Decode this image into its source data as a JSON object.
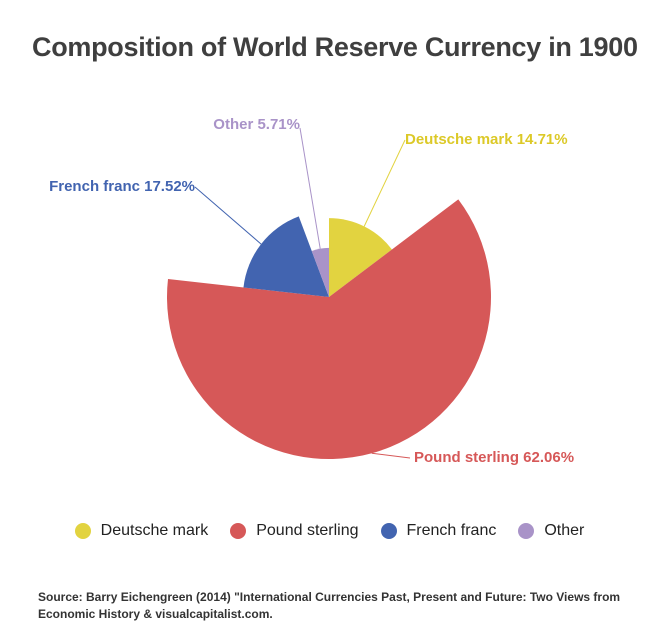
{
  "chart_data": {
    "type": "pie",
    "title": "Composition of World Reserve Currency in 1900",
    "slices": [
      {
        "name": "Deutsche mark",
        "value": 14.71,
        "label": "Deutsche mark 14.71%",
        "color": "#e2d340"
      },
      {
        "name": "Pound sterling",
        "value": 62.06,
        "label": "Pound sterling 62.06%",
        "color": "#d65858"
      },
      {
        "name": "French franc",
        "value": 17.52,
        "label": "French franc 17.52%",
        "color": "#4264b0"
      },
      {
        "name": "Other",
        "value": 5.71,
        "label": "Other 5.71%",
        "color": "#a993c8"
      }
    ],
    "legend_position": "bottom",
    "legend": [
      "Deutsche mark",
      "Pound sterling",
      "French franc",
      "Other"
    ]
  },
  "source": "Source: Barry Eichengreen (2014) \"International Currencies Past, Present and Future: Two Views from Economic History & visualcapitalist.com."
}
